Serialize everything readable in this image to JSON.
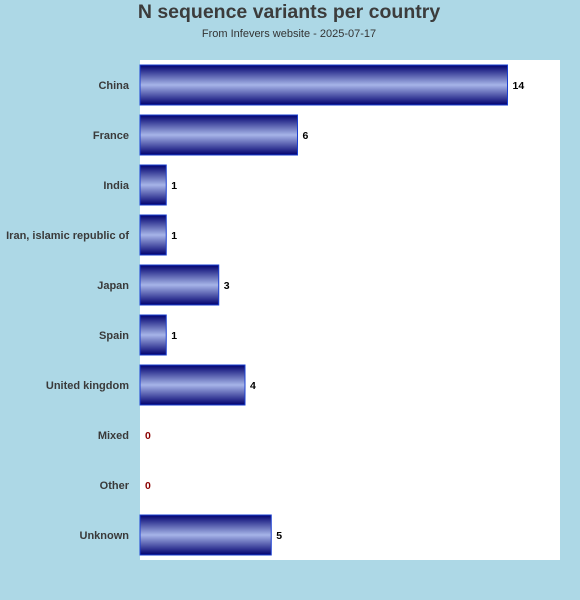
{
  "chart_data": {
    "type": "bar",
    "orientation": "horizontal",
    "title": "N sequence variants per country",
    "subtitle": "From Infevers website - 2025-07-17",
    "categories": [
      "China",
      "France",
      "India",
      "Iran, islamic republic of",
      "Japan",
      "Spain",
      "United kingdom",
      "Mixed",
      "Other",
      "Unknown"
    ],
    "values": [
      14,
      6,
      1,
      1,
      3,
      1,
      4,
      0,
      0,
      5
    ],
    "xlim": [
      0,
      16
    ],
    "grid": false,
    "legend": "none",
    "colors": {
      "background": "#add8e6",
      "plot_background": "#ffffff",
      "bar_dark": "#000080",
      "bar_light": "#a6b4e8",
      "zero_label": "#8b0000",
      "value_label": "#000000"
    }
  }
}
